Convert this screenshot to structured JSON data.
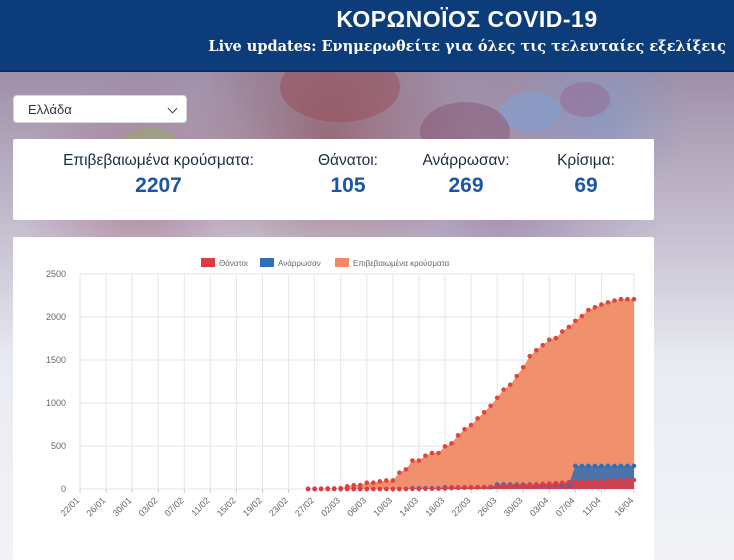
{
  "header": {
    "title": "ΚΟΡΩΝΟΪΟΣ COVID-19",
    "subtitle": "Live updates: Ενημερωθείτε για όλες τις τελευταίες εξελίξεις"
  },
  "country_select": {
    "value": "Ελλάδα"
  },
  "stats": [
    {
      "label": "Επιβεβαιωμένα κρούσματα:",
      "value": "2207"
    },
    {
      "label": "Θάνατοι:",
      "value": "105"
    },
    {
      "label": "Ανάρρωσαν:",
      "value": "269"
    },
    {
      "label": "Κρίσιμα:",
      "value": "69"
    }
  ],
  "colors": {
    "header_bg": "#0d3c7a",
    "deaths": "#e03b45",
    "recovered": "#2e6fb5",
    "confirmed": "#f08a65",
    "confirmed_line": "#e5423c"
  },
  "chart_data": {
    "type": "area",
    "x_tick_labels": [
      "22/01",
      "26/01",
      "30/01",
      "03/02",
      "07/02",
      "11/02",
      "15/02",
      "19/02",
      "23/02",
      "27/02",
      "02/03",
      "06/03",
      "10/03",
      "14/03",
      "18/03",
      "22/03",
      "26/03",
      "30/03",
      "03/04",
      "07/04",
      "11/04",
      "16/04"
    ],
    "y_ticks": [
      0,
      500,
      1000,
      1500,
      2000,
      2500
    ],
    "ylim": [
      0,
      2500
    ],
    "legend_position": "top",
    "grid": true,
    "series": [
      {
        "name": "Θάνατοι",
        "start": "26/02",
        "values": [
          0,
          0,
          0,
          0,
          0,
          0,
          0,
          0,
          0,
          0,
          0,
          0,
          0,
          0,
          0,
          1,
          1,
          1,
          3,
          4,
          5,
          6,
          10,
          13,
          15,
          17,
          20,
          22,
          26,
          28,
          32,
          38,
          43,
          49,
          50,
          53,
          59,
          63,
          68,
          73,
          79,
          81,
          83,
          86,
          90,
          93,
          98,
          99,
          101,
          102,
          105
        ]
      },
      {
        "name": "Ανάρρωσαν",
        "start": "26/02",
        "values": [
          0,
          0,
          0,
          0,
          0,
          0,
          0,
          0,
          0,
          0,
          0,
          0,
          0,
          0,
          0,
          0,
          8,
          8,
          8,
          8,
          8,
          19,
          19,
          19,
          19,
          19,
          19,
          19,
          19,
          52,
          52,
          52,
          52,
          52,
          52,
          52,
          52,
          52,
          52,
          52,
          52,
          269,
          269,
          269,
          269,
          269,
          269,
          269,
          269,
          269,
          269
        ]
      },
      {
        "name": "Επιβεβαιωμένα κρούσματα",
        "start": "26/02",
        "values": [
          3,
          4,
          4,
          7,
          7,
          9,
          31,
          45,
          46,
          73,
          73,
          89,
          99,
          99,
          190,
          228,
          331,
          331,
          387,
          418,
          418,
          495,
          530,
          624,
          695,
          743,
          821,
          892,
          966,
          1061,
          1156,
          1212,
          1314,
          1415,
          1544,
          1613,
          1673,
          1735,
          1755,
          1832,
          1884,
          1955,
          2011,
          2081,
          2114,
          2145,
          2170,
          2192,
          2207,
          2207,
          2207
        ]
      }
    ]
  }
}
